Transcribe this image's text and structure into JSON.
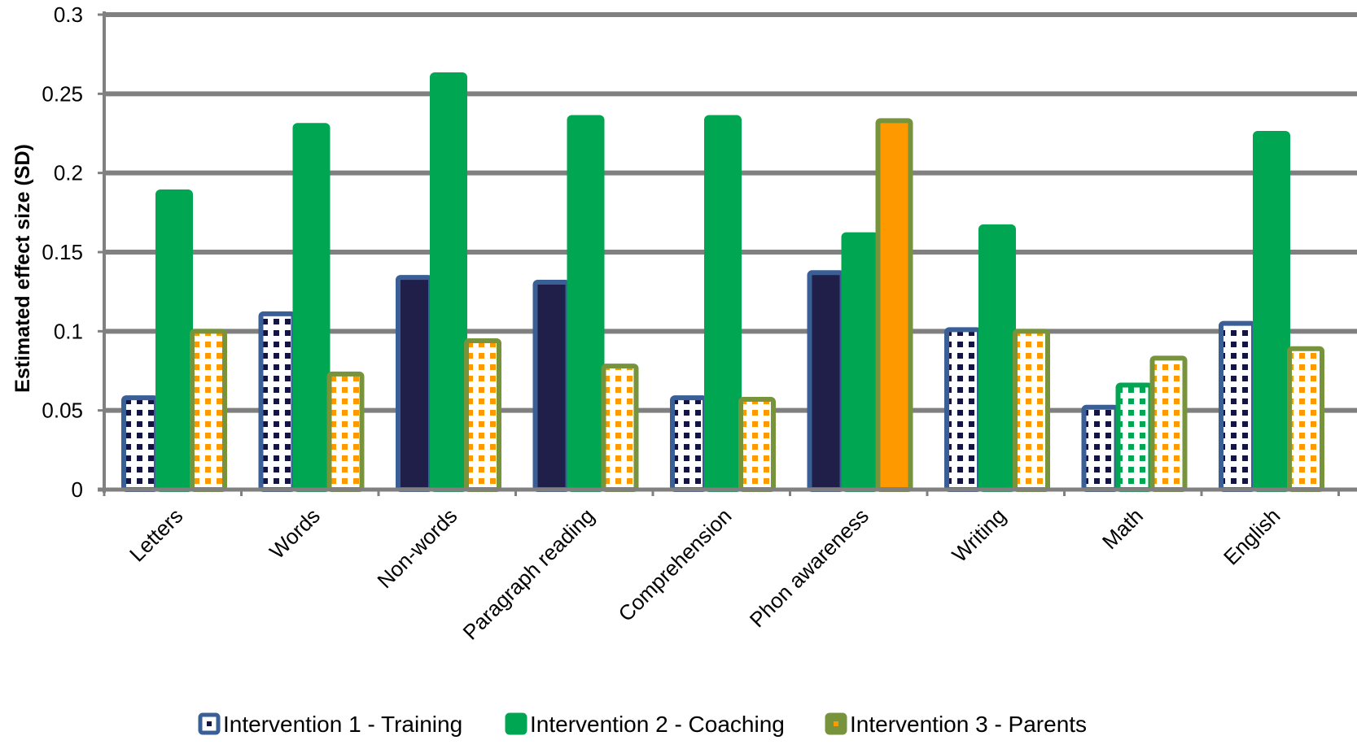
{
  "chart_data": {
    "type": "bar",
    "title": "",
    "xlabel": "",
    "ylabel": "Estimated effect size (SD)",
    "ylim": [
      0,
      0.3
    ],
    "yticks": [
      0,
      0.05,
      0.1,
      0.15,
      0.2,
      0.25,
      0.3
    ],
    "ytick_labels": [
      "0",
      "0.05",
      "0.1",
      "0.15",
      "0.2",
      "0.25",
      "0.3"
    ],
    "grid": true,
    "legend_position": "bottom",
    "categories": [
      "Letters",
      "Words",
      "Non-words",
      "Paragraph reading",
      "Comprehension",
      "Phon awareness",
      "Writing",
      "Math",
      "English"
    ],
    "series": [
      {
        "name": "Intervention 1 - Training",
        "values": [
          0.058,
          0.111,
          0.134,
          0.131,
          0.058,
          0.137,
          0.101,
          0.052,
          0.105
        ],
        "significant": [
          false,
          false,
          true,
          true,
          false,
          true,
          false,
          false,
          false
        ],
        "color": "#1F1F4A",
        "border_color": "#3A5E96",
        "pattern_color": "#141441"
      },
      {
        "name": "Intervention 2 - Coaching",
        "values": [
          0.188,
          0.23,
          0.262,
          0.235,
          0.235,
          0.161,
          0.166,
          0.066,
          0.225
        ],
        "significant": [
          true,
          true,
          true,
          true,
          true,
          true,
          true,
          false,
          true
        ],
        "color": "#00A651",
        "border_color": "#00A651",
        "pattern_color": "#00A651"
      },
      {
        "name": "Intervention 3 - Parents",
        "values": [
          0.1,
          0.073,
          0.094,
          0.078,
          0.057,
          0.233,
          0.1,
          0.083,
          0.089
        ],
        "significant": [
          false,
          false,
          false,
          false,
          false,
          true,
          false,
          false,
          false
        ],
        "color": "#FF9900",
        "border_color": "#77933C",
        "pattern_color": "#FF9900"
      }
    ]
  },
  "legend": {
    "items": [
      {
        "label": "Intervention 1 - Training"
      },
      {
        "label": "Intervention 2 - Coaching"
      },
      {
        "label": "Intervention 3 - Parents"
      }
    ]
  }
}
